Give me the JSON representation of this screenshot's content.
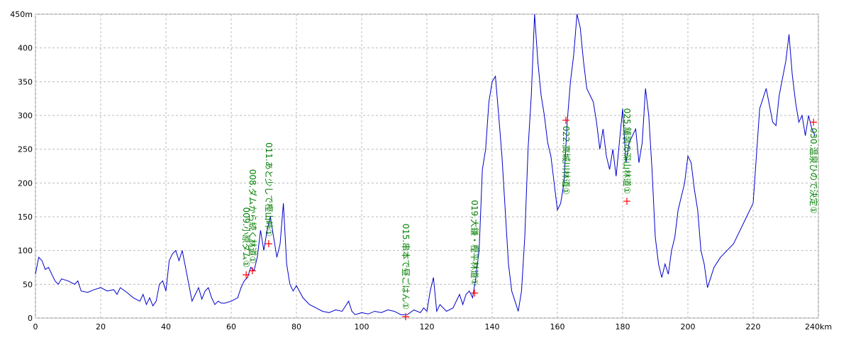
{
  "chart_data": {
    "type": "line",
    "color": "#0000cc",
    "grid": true,
    "xlim": [
      0,
      240
    ],
    "ylim": [
      0,
      450
    ],
    "xticks": [
      0,
      20,
      40,
      60,
      80,
      100,
      120,
      140,
      160,
      180,
      200,
      220,
      {
        "value": 240,
        "label": "240km"
      }
    ],
    "yticks": [
      0,
      50,
      100,
      150,
      200,
      250,
      300,
      350,
      400,
      {
        "value": 450,
        "label": "450m"
      }
    ],
    "x": [
      0,
      1,
      2,
      3,
      4,
      5,
      6,
      7,
      8,
      10,
      12,
      13,
      14,
      16,
      18,
      20,
      22,
      24,
      25,
      26,
      28,
      30,
      32,
      33,
      34,
      35,
      36,
      37,
      38,
      39,
      40,
      41,
      42,
      43,
      44,
      45,
      46,
      47,
      48,
      49,
      50,
      51,
      52,
      53,
      54,
      55,
      56,
      57,
      58,
      60,
      62,
      63,
      64,
      65,
      66,
      67,
      68,
      69,
      70,
      71,
      72,
      73,
      74,
      75,
      76,
      77,
      78,
      79,
      80,
      82,
      84,
      86,
      88,
      90,
      92,
      94,
      96,
      97,
      98,
      100,
      102,
      104,
      106,
      108,
      110,
      112,
      114,
      116,
      118,
      119,
      120,
      121,
      122,
      123,
      124,
      126,
      128,
      130,
      131,
      132,
      133,
      134,
      135,
      136,
      137,
      138,
      139,
      140,
      141,
      142,
      143,
      144,
      145,
      146,
      147,
      148,
      149,
      150,
      151,
      152,
      153,
      154,
      155,
      156,
      157,
      158,
      159,
      160,
      161,
      162,
      163,
      164,
      165,
      166,
      167,
      168,
      169,
      170,
      171,
      172,
      173,
      174,
      175,
      176,
      177,
      178,
      179,
      180,
      181,
      182,
      183,
      184,
      185,
      186,
      187,
      188,
      189,
      190,
      191,
      192,
      193,
      194,
      195,
      196,
      197,
      198,
      199,
      200,
      201,
      202,
      203,
      204,
      205,
      206,
      207,
      208,
      210,
      212,
      214,
      216,
      218,
      220,
      222,
      224,
      226,
      227,
      228,
      230,
      231,
      232,
      233,
      234,
      235,
      236,
      237,
      238,
      239
    ],
    "values": [
      65,
      90,
      85,
      72,
      75,
      65,
      55,
      50,
      58,
      55,
      50,
      55,
      40,
      38,
      42,
      45,
      40,
      42,
      35,
      45,
      38,
      30,
      25,
      35,
      20,
      30,
      18,
      25,
      50,
      55,
      40,
      85,
      95,
      100,
      85,
      100,
      75,
      50,
      25,
      35,
      45,
      28,
      40,
      45,
      30,
      20,
      25,
      22,
      22,
      25,
      30,
      45,
      55,
      60,
      75,
      70,
      90,
      130,
      100,
      130,
      150,
      120,
      90,
      110,
      170,
      80,
      50,
      40,
      48,
      30,
      20,
      15,
      10,
      8,
      12,
      10,
      25,
      10,
      5,
      8,
      6,
      10,
      8,
      12,
      10,
      5,
      5,
      12,
      8,
      15,
      10,
      40,
      60,
      10,
      20,
      10,
      15,
      35,
      20,
      35,
      40,
      30,
      60,
      100,
      220,
      250,
      320,
      350,
      358,
      300,
      240,
      160,
      80,
      40,
      25,
      10,
      40,
      120,
      250,
      330,
      450,
      380,
      330,
      300,
      260,
      240,
      200,
      160,
      170,
      200,
      290,
      350,
      390,
      450,
      430,
      380,
      340,
      330,
      320,
      290,
      250,
      280,
      240,
      220,
      250,
      210,
      260,
      310,
      230,
      260,
      270,
      280,
      230,
      260,
      340,
      300,
      220,
      120,
      80,
      60,
      80,
      65,
      100,
      120,
      160,
      180,
      200,
      240,
      230,
      190,
      160,
      100,
      80,
      45,
      60,
      75,
      90,
      100,
      110,
      130,
      150,
      170,
      310,
      340,
      290,
      285,
      330,
      380,
      420,
      360,
      320,
      290,
      300,
      270,
      300,
      280,
      270
    ],
    "annotations": [
      {
        "text": "008.ダムから続く林道①",
        "x": 66.5,
        "y": 70
      },
      {
        "text": "009.小原ダム①",
        "x": 64.6,
        "y": 64
      },
      {
        "text": "011.あと少しで樫山峠①",
        "x": 71.5,
        "y": 110
      },
      {
        "text": "015.串本で昼ごはん①",
        "x": 113.5,
        "y": 2
      },
      {
        "text": "019.大鎌・樫平林道①",
        "x": 134.6,
        "y": 37
      },
      {
        "text": "022.高城川林道①",
        "x": 162.6,
        "y": 293
      },
      {
        "text": "025.舗装の深山林道①",
        "x": 181.3,
        "y": 173
      },
      {
        "text": "030.温泉ひので決定①",
        "x": 238.5,
        "y": 290
      }
    ]
  }
}
